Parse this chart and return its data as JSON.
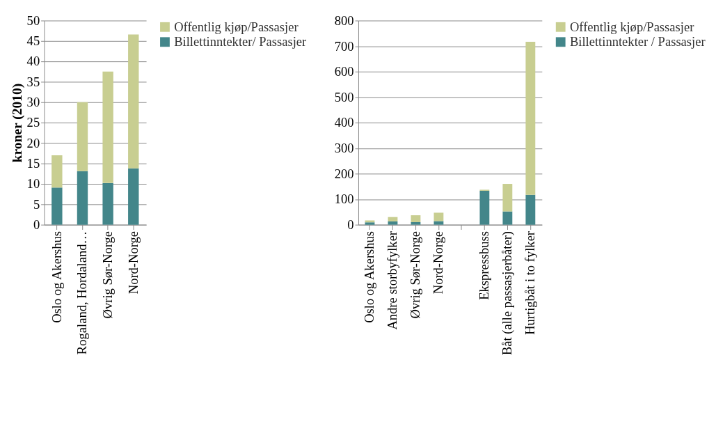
{
  "chart_data": [
    {
      "type": "bar",
      "stacked": true,
      "ylabel": "kroner (2010)",
      "categories": [
        "Oslo og Akershus",
        "Rogaland, Hordaland…",
        "Øvrig Sør-Norge",
        "Nord-Norge"
      ],
      "ylim": [
        0,
        50
      ],
      "yticks": [
        0,
        5,
        10,
        15,
        20,
        25,
        30,
        35,
        40,
        45,
        50
      ],
      "grid": "y",
      "legend": "right",
      "series": [
        {
          "name": "Billettinntekter/ Passasjer",
          "color": "#43868a",
          "values": [
            9.1,
            13.1,
            10.2,
            13.8
          ]
        },
        {
          "name": "Offentlig kjøp/Passasjer",
          "color": "#c8ce91",
          "values": [
            7.9,
            16.9,
            27.3,
            32.8
          ]
        }
      ]
    },
    {
      "type": "bar",
      "stacked": true,
      "categories": [
        "Oslo og Akershus",
        "Andre storbyfylker",
        "Øvrig Sør-Norge",
        "Nord-Norge",
        null,
        "Ekspressbuss",
        "Båt (alle passasjerbåter)",
        "Hurtigbåt i to fylker"
      ],
      "ylim": [
        0,
        800
      ],
      "yticks": [
        0,
        100,
        200,
        300,
        400,
        500,
        600,
        700,
        800
      ],
      "grid": "y",
      "legend": "right",
      "series": [
        {
          "name": "Billettinntekter / Passasjer",
          "color": "#43868a",
          "values": [
            9,
            13,
            10,
            14,
            null,
            133,
            52,
            117
          ]
        },
        {
          "name": "Offentlig kjøp/Passasjer",
          "color": "#c8ce91",
          "values": [
            8,
            17,
            27,
            33,
            null,
            4,
            108,
            600
          ]
        }
      ]
    }
  ]
}
